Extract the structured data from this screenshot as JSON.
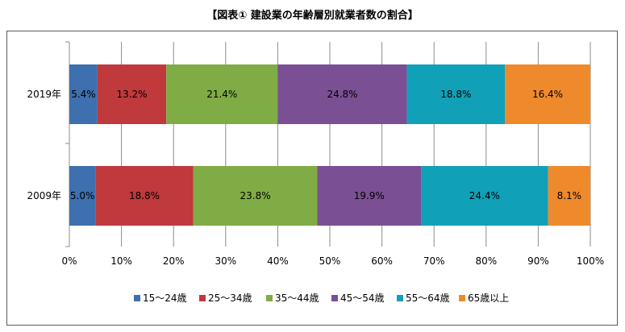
{
  "chart_data": {
    "type": "bar",
    "orientation": "horizontal",
    "stacked": "percent",
    "title": "【図表① 建設業の年齢層別就業者数の割合】",
    "categories": [
      "2019年",
      "2009年"
    ],
    "series": [
      {
        "name": "15～24歳",
        "color": "#3e6fae",
        "values": [
          5.4,
          5.0
        ],
        "labels": [
          "5.4%",
          "5.0%"
        ]
      },
      {
        "name": "25～34歳",
        "color": "#c0393c",
        "values": [
          13.2,
          18.8
        ],
        "labels": [
          "13.2%",
          "18.8%"
        ]
      },
      {
        "name": "35～44歳",
        "color": "#80ac45",
        "values": [
          21.4,
          23.8
        ],
        "labels": [
          "21.4%",
          "23.8%"
        ]
      },
      {
        "name": "45～54歳",
        "color": "#7a4f93",
        "values": [
          24.8,
          19.9
        ],
        "labels": [
          "24.8%",
          "19.9%"
        ]
      },
      {
        "name": "55～64歳",
        "color": "#10a0b8",
        "values": [
          18.8,
          24.4
        ],
        "labels": [
          "18.8%",
          "24.4%"
        ]
      },
      {
        "name": "65歳以上",
        "color": "#ee8a2c",
        "values": [
          16.4,
          8.1
        ],
        "labels": [
          "16.4%",
          "8.1%"
        ]
      }
    ],
    "xlim": [
      0,
      100
    ],
    "xticks": [
      "0%",
      "10%",
      "20%",
      "30%",
      "40%",
      "50%",
      "60%",
      "70%",
      "80%",
      "90%",
      "100%"
    ],
    "grid": "vertical",
    "legend_position": "bottom"
  }
}
